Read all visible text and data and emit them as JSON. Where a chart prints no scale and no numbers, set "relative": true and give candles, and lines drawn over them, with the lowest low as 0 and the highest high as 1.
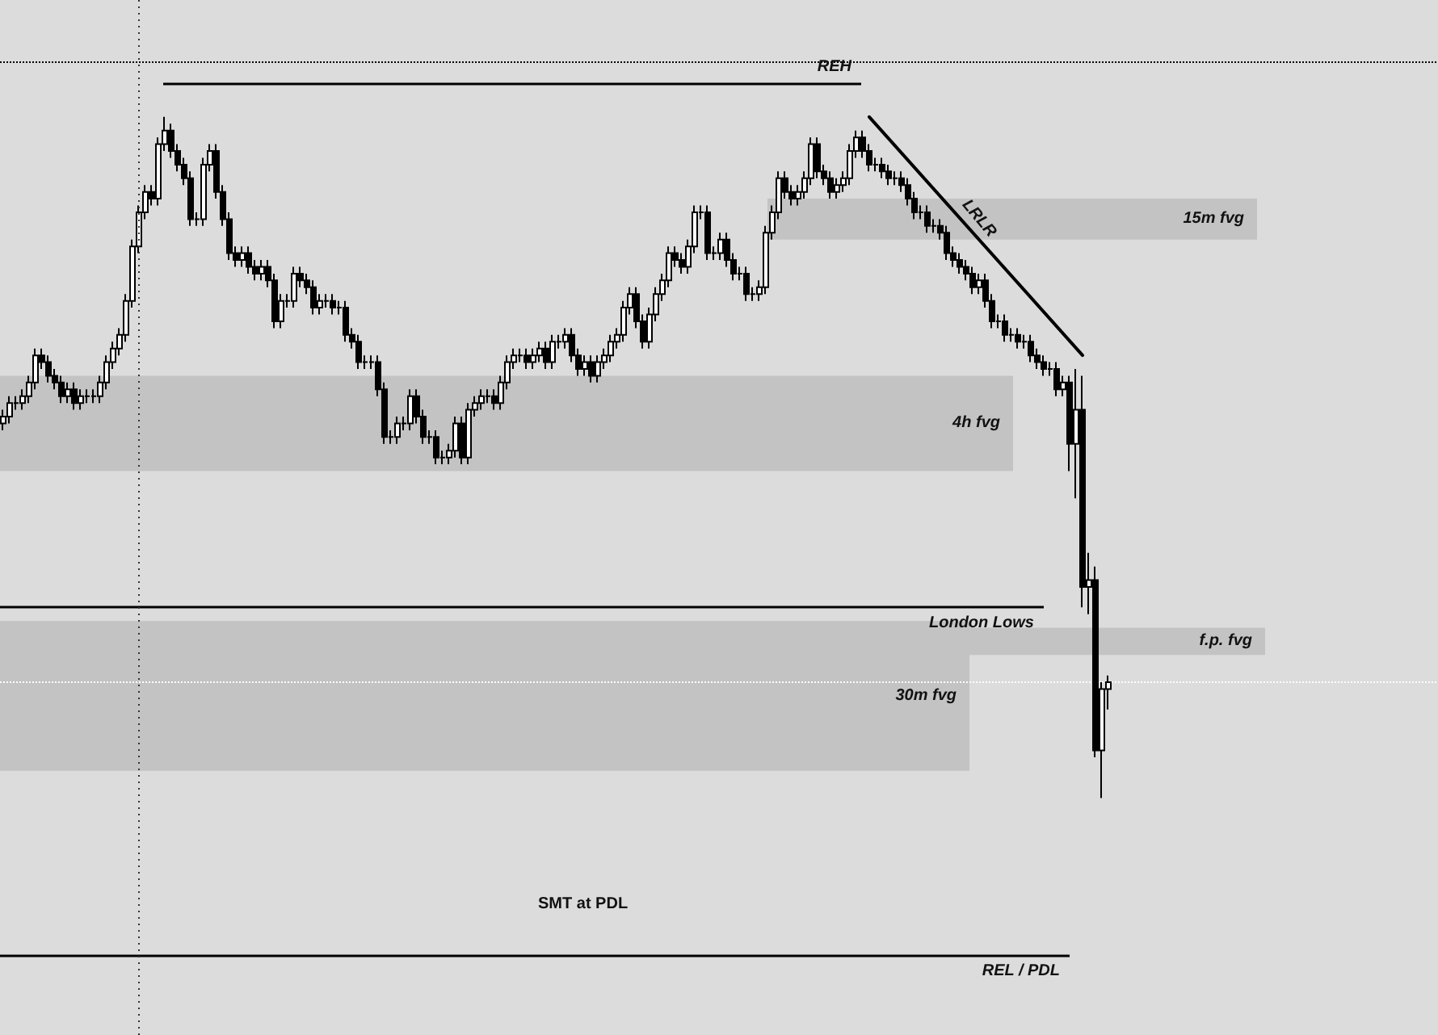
{
  "chart_data": {
    "type": "candlestick",
    "relative": true,
    "grid": false,
    "tick_labels": false,
    "categories": [
      null,
      null,
      null,
      null,
      null,
      null,
      null,
      null,
      null,
      null,
      null,
      null,
      null,
      null,
      null,
      null,
      null,
      null,
      null,
      null,
      null,
      null,
      null,
      null,
      null,
      null,
      null,
      null,
      null,
      null,
      null,
      null,
      null,
      null,
      null,
      null,
      null,
      null,
      null,
      null,
      null,
      null,
      null,
      null,
      null,
      null,
      null,
      null,
      null,
      null,
      null,
      null,
      null,
      null,
      null,
      null,
      null,
      null,
      null,
      null,
      null,
      null,
      null,
      null,
      null,
      null,
      null,
      null,
      null,
      null,
      null,
      null,
      null,
      null,
      null,
      null,
      null,
      null,
      null,
      null,
      null,
      null,
      null,
      null,
      null,
      null,
      null,
      null,
      null,
      null,
      null,
      null,
      null,
      null,
      null,
      null,
      null,
      null,
      null,
      null,
      null,
      null,
      null,
      null,
      null,
      null,
      null,
      null,
      null,
      null,
      null,
      null,
      null,
      null,
      null,
      null,
      null,
      null,
      null,
      null,
      null,
      null,
      null,
      null,
      null,
      null,
      null,
      null,
      null,
      null,
      null,
      null,
      null,
      null,
      null,
      null,
      null,
      null,
      null,
      null,
      null,
      null,
      null,
      null,
      null,
      null,
      null,
      null,
      null,
      null,
      null,
      null,
      null,
      null,
      null,
      null,
      null,
      null,
      null,
      null,
      null,
      null,
      null,
      null,
      null,
      null,
      null,
      null,
      null,
      null,
      null,
      null
    ],
    "ohlc": [
      [
        0.55,
        0.57,
        0.54,
        0.56
      ],
      [
        0.56,
        0.59,
        0.55,
        0.58
      ],
      [
        0.58,
        0.59,
        0.57,
        0.58
      ],
      [
        0.58,
        0.6,
        0.57,
        0.59
      ],
      [
        0.59,
        0.62,
        0.58,
        0.61
      ],
      [
        0.61,
        0.66,
        0.6,
        0.65
      ],
      [
        0.65,
        0.66,
        0.63,
        0.64
      ],
      [
        0.64,
        0.65,
        0.61,
        0.62
      ],
      [
        0.62,
        0.63,
        0.6,
        0.61
      ],
      [
        0.61,
        0.62,
        0.58,
        0.59
      ],
      [
        0.59,
        0.61,
        0.58,
        0.6
      ],
      [
        0.6,
        0.61,
        0.57,
        0.58
      ],
      [
        0.58,
        0.6,
        0.57,
        0.59
      ],
      [
        0.59,
        0.6,
        0.58,
        0.59
      ],
      [
        0.59,
        0.6,
        0.58,
        0.59
      ],
      [
        0.59,
        0.62,
        0.58,
        0.61
      ],
      [
        0.61,
        0.65,
        0.6,
        0.64
      ],
      [
        0.64,
        0.67,
        0.63,
        0.66
      ],
      [
        0.66,
        0.69,
        0.65,
        0.68
      ],
      [
        0.68,
        0.74,
        0.67,
        0.73
      ],
      [
        0.73,
        0.82,
        0.72,
        0.81
      ],
      [
        0.81,
        0.87,
        0.8,
        0.86
      ],
      [
        0.86,
        0.9,
        0.85,
        0.89
      ],
      [
        0.89,
        0.9,
        0.87,
        0.88
      ],
      [
        0.88,
        0.97,
        0.87,
        0.96
      ],
      [
        0.96,
        1,
        0.95,
        0.98
      ],
      [
        0.98,
        0.99,
        0.94,
        0.95
      ],
      [
        0.95,
        0.96,
        0.92,
        0.93
      ],
      [
        0.93,
        0.94,
        0.9,
        0.91
      ],
      [
        0.91,
        0.92,
        0.84,
        0.85
      ],
      [
        0.85,
        0.86,
        0.84,
        0.85
      ],
      [
        0.85,
        0.94,
        0.84,
        0.93
      ],
      [
        0.93,
        0.96,
        0.92,
        0.95
      ],
      [
        0.95,
        0.96,
        0.88,
        0.89
      ],
      [
        0.89,
        0.9,
        0.84,
        0.85
      ],
      [
        0.85,
        0.86,
        0.79,
        0.8
      ],
      [
        0.8,
        0.81,
        0.78,
        0.79
      ],
      [
        0.79,
        0.81,
        0.78,
        0.8
      ],
      [
        0.8,
        0.81,
        0.77,
        0.78
      ],
      [
        0.78,
        0.79,
        0.76,
        0.77
      ],
      [
        0.77,
        0.79,
        0.76,
        0.78
      ],
      [
        0.78,
        0.79,
        0.75,
        0.76
      ],
      [
        0.76,
        0.77,
        0.69,
        0.7
      ],
      [
        0.7,
        0.74,
        0.69,
        0.73
      ],
      [
        0.73,
        0.74,
        0.72,
        0.73
      ],
      [
        0.73,
        0.78,
        0.72,
        0.77
      ],
      [
        0.77,
        0.78,
        0.75,
        0.76
      ],
      [
        0.76,
        0.77,
        0.74,
        0.75
      ],
      [
        0.75,
        0.76,
        0.71,
        0.72
      ],
      [
        0.72,
        0.74,
        0.71,
        0.73
      ],
      [
        0.73,
        0.74,
        0.72,
        0.73
      ],
      [
        0.73,
        0.74,
        0.71,
        0.72
      ],
      [
        0.72,
        0.73,
        0.71,
        0.72
      ],
      [
        0.72,
        0.73,
        0.67,
        0.68
      ],
      [
        0.68,
        0.69,
        0.66,
        0.67
      ],
      [
        0.67,
        0.68,
        0.63,
        0.64
      ],
      [
        0.64,
        0.65,
        0.63,
        0.64
      ],
      [
        0.64,
        0.65,
        0.63,
        0.64
      ],
      [
        0.64,
        0.65,
        0.59,
        0.6
      ],
      [
        0.6,
        0.61,
        0.52,
        0.53
      ],
      [
        0.53,
        0.54,
        0.52,
        0.53
      ],
      [
        0.53,
        0.56,
        0.52,
        0.55
      ],
      [
        0.55,
        0.56,
        0.54,
        0.55
      ],
      [
        0.55,
        0.6,
        0.54,
        0.59
      ],
      [
        0.59,
        0.6,
        0.55,
        0.56
      ],
      [
        0.56,
        0.57,
        0.52,
        0.53
      ],
      [
        0.53,
        0.54,
        0.52,
        0.53
      ],
      [
        0.53,
        0.54,
        0.49,
        0.5
      ],
      [
        0.5,
        0.51,
        0.49,
        0.5
      ],
      [
        0.5,
        0.52,
        0.49,
        0.51
      ],
      [
        0.51,
        0.56,
        0.5,
        0.55
      ],
      [
        0.55,
        0.56,
        0.49,
        0.5
      ],
      [
        0.5,
        0.58,
        0.49,
        0.57
      ],
      [
        0.57,
        0.59,
        0.56,
        0.58
      ],
      [
        0.58,
        0.6,
        0.57,
        0.59
      ],
      [
        0.59,
        0.6,
        0.58,
        0.59
      ],
      [
        0.59,
        0.6,
        0.57,
        0.58
      ],
      [
        0.58,
        0.62,
        0.57,
        0.61
      ],
      [
        0.61,
        0.65,
        0.6,
        0.64
      ],
      [
        0.64,
        0.66,
        0.63,
        0.65
      ],
      [
        0.65,
        0.66,
        0.64,
        0.65
      ],
      [
        0.65,
        0.66,
        0.63,
        0.64
      ],
      [
        0.64,
        0.66,
        0.63,
        0.65
      ],
      [
        0.65,
        0.67,
        0.64,
        0.66
      ],
      [
        0.66,
        0.67,
        0.63,
        0.64
      ],
      [
        0.64,
        0.68,
        0.63,
        0.67
      ],
      [
        0.67,
        0.68,
        0.66,
        0.67
      ],
      [
        0.67,
        0.69,
        0.66,
        0.68
      ],
      [
        0.68,
        0.69,
        0.64,
        0.65
      ],
      [
        0.65,
        0.66,
        0.62,
        0.63
      ],
      [
        0.63,
        0.65,
        0.62,
        0.64
      ],
      [
        0.64,
        0.65,
        0.61,
        0.62
      ],
      [
        0.62,
        0.65,
        0.61,
        0.64
      ],
      [
        0.64,
        0.66,
        0.63,
        0.65
      ],
      [
        0.65,
        0.68,
        0.64,
        0.67
      ],
      [
        0.67,
        0.69,
        0.66,
        0.68
      ],
      [
        0.68,
        0.73,
        0.67,
        0.72
      ],
      [
        0.72,
        0.75,
        0.71,
        0.74
      ],
      [
        0.74,
        0.75,
        0.69,
        0.7
      ],
      [
        0.7,
        0.71,
        0.66,
        0.67
      ],
      [
        0.67,
        0.72,
        0.66,
        0.71
      ],
      [
        0.71,
        0.75,
        0.7,
        0.74
      ],
      [
        0.74,
        0.77,
        0.73,
        0.76
      ],
      [
        0.76,
        0.81,
        0.75,
        0.8
      ],
      [
        0.8,
        0.81,
        0.78,
        0.79
      ],
      [
        0.79,
        0.8,
        0.77,
        0.78
      ],
      [
        0.78,
        0.82,
        0.77,
        0.81
      ],
      [
        0.81,
        0.87,
        0.8,
        0.86
      ],
      [
        0.86,
        0.87,
        0.85,
        0.86
      ],
      [
        0.86,
        0.87,
        0.79,
        0.8
      ],
      [
        0.8,
        0.81,
        0.79,
        0.8
      ],
      [
        0.8,
        0.83,
        0.79,
        0.82
      ],
      [
        0.82,
        0.83,
        0.78,
        0.79
      ],
      [
        0.79,
        0.8,
        0.76,
        0.77
      ],
      [
        0.77,
        0.78,
        0.76,
        0.77
      ],
      [
        0.77,
        0.78,
        0.73,
        0.74
      ],
      [
        0.74,
        0.75,
        0.73,
        0.74
      ],
      [
        0.74,
        0.76,
        0.73,
        0.75
      ],
      [
        0.75,
        0.84,
        0.74,
        0.83
      ],
      [
        0.83,
        0.87,
        0.82,
        0.86
      ],
      [
        0.86,
        0.92,
        0.85,
        0.91
      ],
      [
        0.91,
        0.92,
        0.88,
        0.89
      ],
      [
        0.89,
        0.9,
        0.87,
        0.88
      ],
      [
        0.88,
        0.9,
        0.87,
        0.89
      ],
      [
        0.89,
        0.92,
        0.88,
        0.91
      ],
      [
        0.91,
        0.97,
        0.9,
        0.96
      ],
      [
        0.96,
        0.97,
        0.91,
        0.92
      ],
      [
        0.92,
        0.93,
        0.9,
        0.91
      ],
      [
        0.91,
        0.92,
        0.88,
        0.89
      ],
      [
        0.89,
        0.91,
        0.88,
        0.9
      ],
      [
        0.9,
        0.92,
        0.89,
        0.91
      ],
      [
        0.91,
        0.96,
        0.9,
        0.95
      ],
      [
        0.95,
        0.98,
        0.94,
        0.97
      ],
      [
        0.97,
        0.98,
        0.94,
        0.95
      ],
      [
        0.95,
        0.96,
        0.92,
        0.93
      ],
      [
        0.93,
        0.94,
        0.92,
        0.93
      ],
      [
        0.93,
        0.94,
        0.91,
        0.92
      ],
      [
        0.92,
        0.93,
        0.9,
        0.91
      ],
      [
        0.91,
        0.92,
        0.9,
        0.91
      ],
      [
        0.91,
        0.92,
        0.89,
        0.9
      ],
      [
        0.9,
        0.91,
        0.87,
        0.88
      ],
      [
        0.88,
        0.89,
        0.85,
        0.86
      ],
      [
        0.86,
        0.87,
        0.85,
        0.86
      ],
      [
        0.86,
        0.87,
        0.83,
        0.84
      ],
      [
        0.84,
        0.85,
        0.83,
        0.84
      ],
      [
        0.84,
        0.85,
        0.82,
        0.83
      ],
      [
        0.83,
        0.84,
        0.79,
        0.8
      ],
      [
        0.8,
        0.81,
        0.78,
        0.79
      ],
      [
        0.79,
        0.8,
        0.77,
        0.78
      ],
      [
        0.78,
        0.79,
        0.76,
        0.77
      ],
      [
        0.77,
        0.78,
        0.74,
        0.75
      ],
      [
        0.75,
        0.77,
        0.74,
        0.76
      ],
      [
        0.76,
        0.77,
        0.72,
        0.73
      ],
      [
        0.73,
        0.74,
        0.69,
        0.7
      ],
      [
        0.7,
        0.71,
        0.69,
        0.7
      ],
      [
        0.7,
        0.71,
        0.67,
        0.68
      ],
      [
        0.68,
        0.69,
        0.67,
        0.68
      ],
      [
        0.68,
        0.69,
        0.66,
        0.67
      ],
      [
        0.67,
        0.68,
        0.66,
        0.67
      ],
      [
        0.67,
        0.68,
        0.64,
        0.65
      ],
      [
        0.65,
        0.66,
        0.63,
        0.64
      ],
      [
        0.64,
        0.65,
        0.62,
        0.63
      ],
      [
        0.63,
        0.64,
        0.62,
        0.63
      ],
      [
        0.63,
        0.64,
        0.59,
        0.6
      ],
      [
        0.6,
        0.62,
        0.59,
        0.61
      ],
      [
        0.61,
        0.62,
        0.48,
        0.52
      ],
      [
        0.52,
        0.63,
        0.44,
        0.57
      ],
      [
        0.57,
        0.62,
        0.28,
        0.31
      ],
      [
        0.31,
        0.36,
        0.27,
        0.32
      ],
      [
        0.32,
        0.34,
        0.06,
        0.07
      ],
      [
        0.07,
        0.17,
        0,
        0.16
      ],
      [
        0.16,
        0.18,
        0.13,
        0.17
      ]
    ],
    "series": [
      {
        "type": "line",
        "color": "#000000",
        "values": [
          null,
          null,
          null,
          null,
          null,
          null,
          null,
          null,
          null,
          null,
          null,
          null,
          null,
          null,
          null,
          null,
          null,
          null,
          null,
          null,
          null,
          null,
          null,
          null,
          null,
          null,
          null,
          null,
          null,
          null,
          null,
          null,
          null,
          null,
          null,
          null,
          null,
          null,
          null,
          null,
          null,
          null,
          null,
          null,
          null,
          null,
          null,
          null,
          null,
          null,
          null,
          null,
          null,
          null,
          null,
          null,
          null,
          null,
          null,
          null,
          null,
          null,
          null,
          null,
          null,
          null,
          null,
          null,
          null,
          null,
          null,
          null,
          null,
          null,
          null,
          null,
          null,
          null,
          null,
          null,
          null,
          null,
          null,
          null,
          null,
          null,
          null,
          null,
          null,
          null,
          null,
          null,
          null,
          null,
          null,
          null,
          null,
          null,
          null,
          null,
          null,
          null,
          null,
          null,
          null,
          null,
          null,
          null,
          null,
          null,
          null,
          null,
          null,
          null,
          null,
          null,
          null,
          null,
          null,
          null,
          null,
          null,
          null,
          null,
          null,
          null,
          null,
          null,
          null,
          null,
          null,
          null,
          null,
          null,
          1,
          null,
          null,
          null,
          null,
          null,
          null,
          null,
          null,
          null,
          null,
          null,
          null,
          null,
          null,
          null,
          null,
          null,
          null,
          null,
          null,
          null,
          null,
          null,
          null,
          null,
          null,
          null,
          null,
          null,
          null,
          null,
          null,
          0.65,
          null,
          null,
          null,
          null
        ]
      }
    ],
    "ref_lines": [
      {
        "axis": "y",
        "value": 1.05,
        "label": "REH",
        "color": "#000000",
        "line_style": "solid"
      },
      {
        "axis": "y",
        "value": 1.08,
        "color": "#000000",
        "line_style": "dotted"
      },
      {
        "axis": "y",
        "value": 0.28,
        "label": "London Lows",
        "color": "#000000",
        "line_style": "solid"
      },
      {
        "axis": "y",
        "value": -0.23,
        "label": "REL / PDL",
        "color": "#000000",
        "line_style": "solid"
      },
      {
        "axis": "y",
        "value": 0.17,
        "color": "#ffffff",
        "line_style": "dotted"
      }
    ],
    "bands": [
      {
        "axis": "y",
        "from": 0.82,
        "to": 0.88,
        "label": "15m fvg",
        "color": "#c0c0c0"
      },
      {
        "axis": "y",
        "from": 0.48,
        "to": 0.62,
        "label": "4h fvg",
        "color": "#c0c0c0"
      },
      {
        "axis": "y",
        "from": 0.04,
        "to": 0.26,
        "label": "30m fvg",
        "color": "#c0c0c0"
      },
      {
        "axis": "y",
        "from": 0.21,
        "to": 0.25,
        "label": "f.p. fvg",
        "color": "#c0c0c0"
      }
    ],
    "annotations": [
      "LRLR",
      "SMT at PDL"
    ]
  }
}
